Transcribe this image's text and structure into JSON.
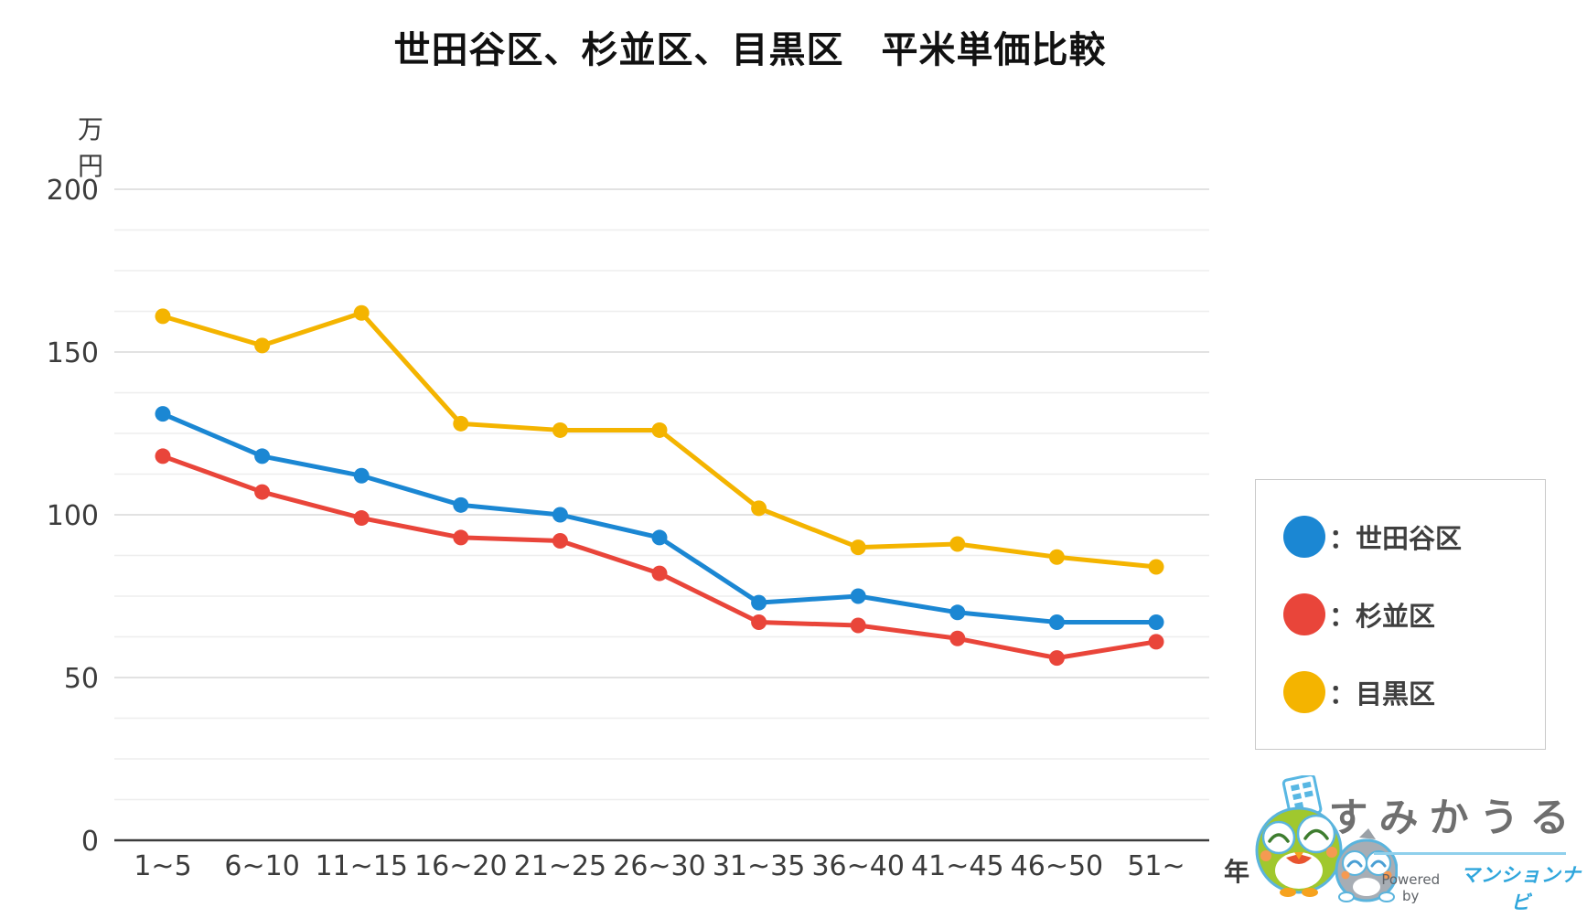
{
  "title": "世田谷区、杉並区、目黒区　平米単価比較",
  "y_unit": "万円",
  "x_unit": "年",
  "legend": [
    {
      "label": "：世田谷区",
      "color": "#1b87d3"
    },
    {
      "label": "：杉並区",
      "color": "#e9453a"
    },
    {
      "label": "：目黒区",
      "color": "#f4b400"
    }
  ],
  "footer": {
    "brand": "すみかうる",
    "powered_by": "Powered by",
    "powered_brand": "マンションナビ"
  },
  "chart_data": {
    "type": "line",
    "title": "世田谷区、杉並区、目黒区　平米単価比較",
    "xlabel": "年",
    "ylabel": "万円",
    "categories": [
      "1~5",
      "6~10",
      "11~15",
      "16~20",
      "21~25",
      "26~30",
      "31~35",
      "36~40",
      "41~45",
      "46~50",
      "51~"
    ],
    "series": [
      {
        "name": "世田谷区",
        "color": "#1b87d3",
        "values": [
          131,
          118,
          112,
          103,
          100,
          93,
          73,
          75,
          70,
          67,
          67
        ]
      },
      {
        "name": "杉並区",
        "color": "#e9453a",
        "values": [
          118,
          107,
          99,
          93,
          92,
          82,
          67,
          66,
          62,
          56,
          61
        ]
      },
      {
        "name": "目黒区",
        "color": "#f4b400",
        "values": [
          161,
          152,
          162,
          128,
          126,
          126,
          102,
          90,
          91,
          87,
          84
        ]
      }
    ],
    "ylim": [
      0,
      200
    ],
    "yticks": [
      0,
      50,
      100,
      150,
      200
    ],
    "minor_grid_step": 12.5,
    "grid": true,
    "legend_position": "right"
  }
}
